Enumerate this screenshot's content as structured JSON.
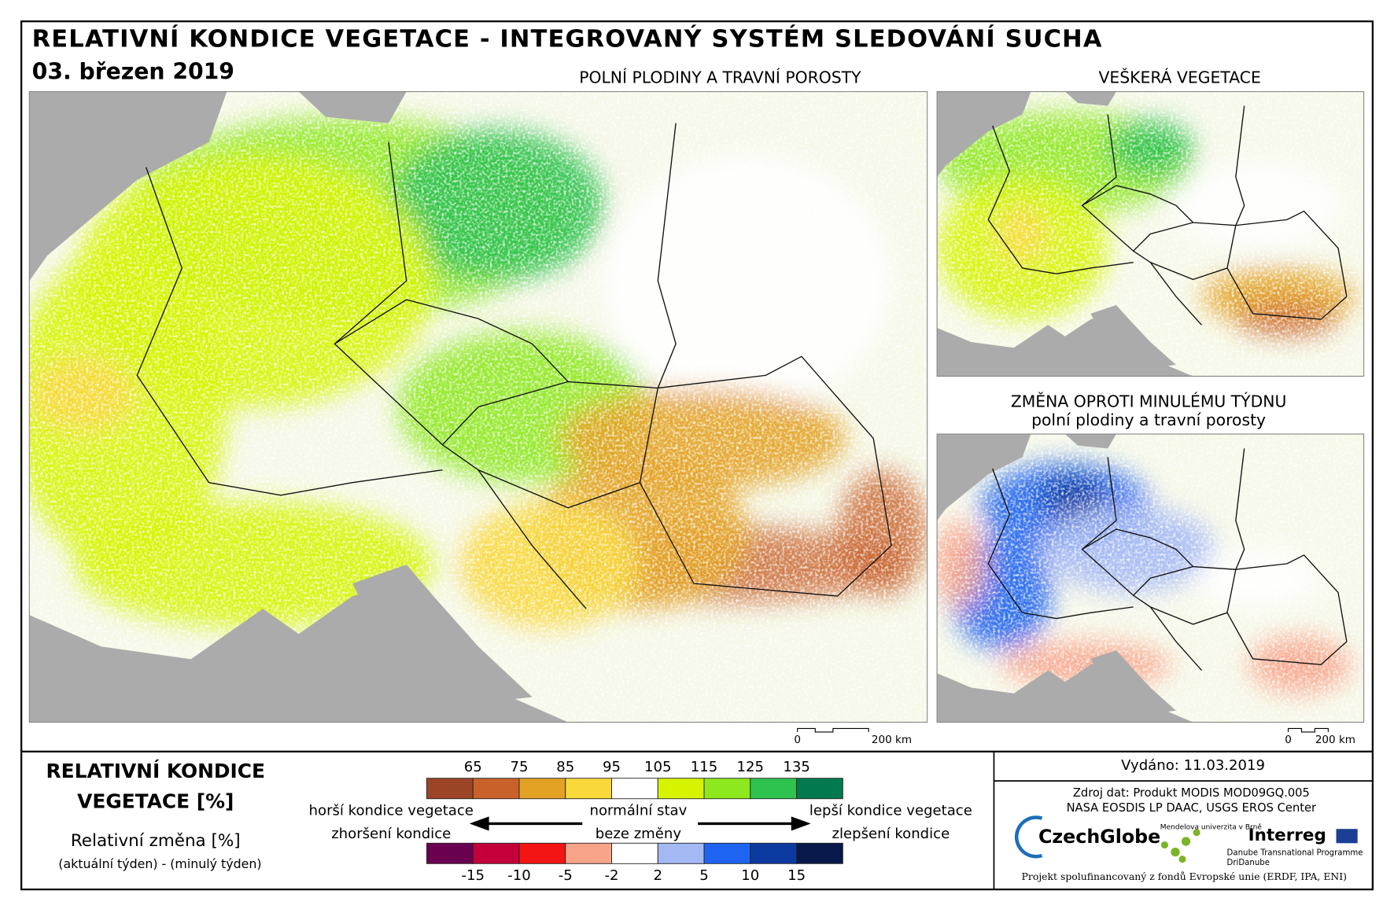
{
  "header": {
    "title": "RELATIVNÍ KONDICE VEGETACE - INTEGROVANÝ SYSTÉM SLEDOVÁNÍ SUCHA",
    "date": "03. březen 2019"
  },
  "panels": [
    {
      "title": "POLNÍ PLODINY A TRAVNÍ POROSTY",
      "scale_start": "0",
      "scale_end": "200 km"
    },
    {
      "title": "VEŠKERÁ VEGETACE"
    },
    {
      "title": "ZMĚNA OPROTI MINULÉMU TÝDNU",
      "subtitle": "polní plodiny a travní porosty",
      "scale_start": "0",
      "scale_end": "200 km"
    }
  ],
  "legend": {
    "title": [
      "RELATIVNÍ KONDICE",
      "VEGETACE [%]"
    ],
    "change_title": "Relativní změna [%]",
    "change_subtitle": "(aktuální týden) - (minulý týden)",
    "condition_colors": [
      "#9c4526",
      "#c8612a",
      "#e3a224",
      "#f8d83a",
      "#ffffff",
      "#d6f400",
      "#8ee81e",
      "#2ec24e",
      "#007a4e"
    ],
    "condition_ticks": [
      65,
      75,
      85,
      95,
      105,
      115,
      125,
      135
    ],
    "change_colors": [
      "#6a0050",
      "#c4003a",
      "#f41414",
      "#f8a48a",
      "#ffffff",
      "#a4b8f4",
      "#1e64f0",
      "#0c3aa0",
      "#081848"
    ],
    "change_ticks": [
      -15,
      -10,
      -5,
      -2,
      2,
      5,
      10,
      15
    ],
    "worse": [
      "horší kondice vegetace",
      "zhoršení kondice"
    ],
    "normal": [
      "normální stav",
      "beze změny"
    ],
    "better": [
      "lepší kondice vegetace",
      "zlepšení kondice"
    ]
  },
  "info": {
    "issued": "Vydáno: 11.03.2019",
    "source": [
      "Zdroj dat: Produkt MODIS MOD09GQ.005",
      "NASA EOSDIS LP DAAC, USGS EROS Center"
    ],
    "logo_czechglobe": "CzechGlobe",
    "logo_mendel": "Mendelova univerzita v Brně",
    "logo_interreg": "Interreg",
    "logo_danube": "Danube Transnational Programme",
    "logo_dridanube": "DriDanube",
    "footer": "Projekt spolufinancovaný z fondů Evropské unie (ERDF, IPA, ENI)"
  }
}
